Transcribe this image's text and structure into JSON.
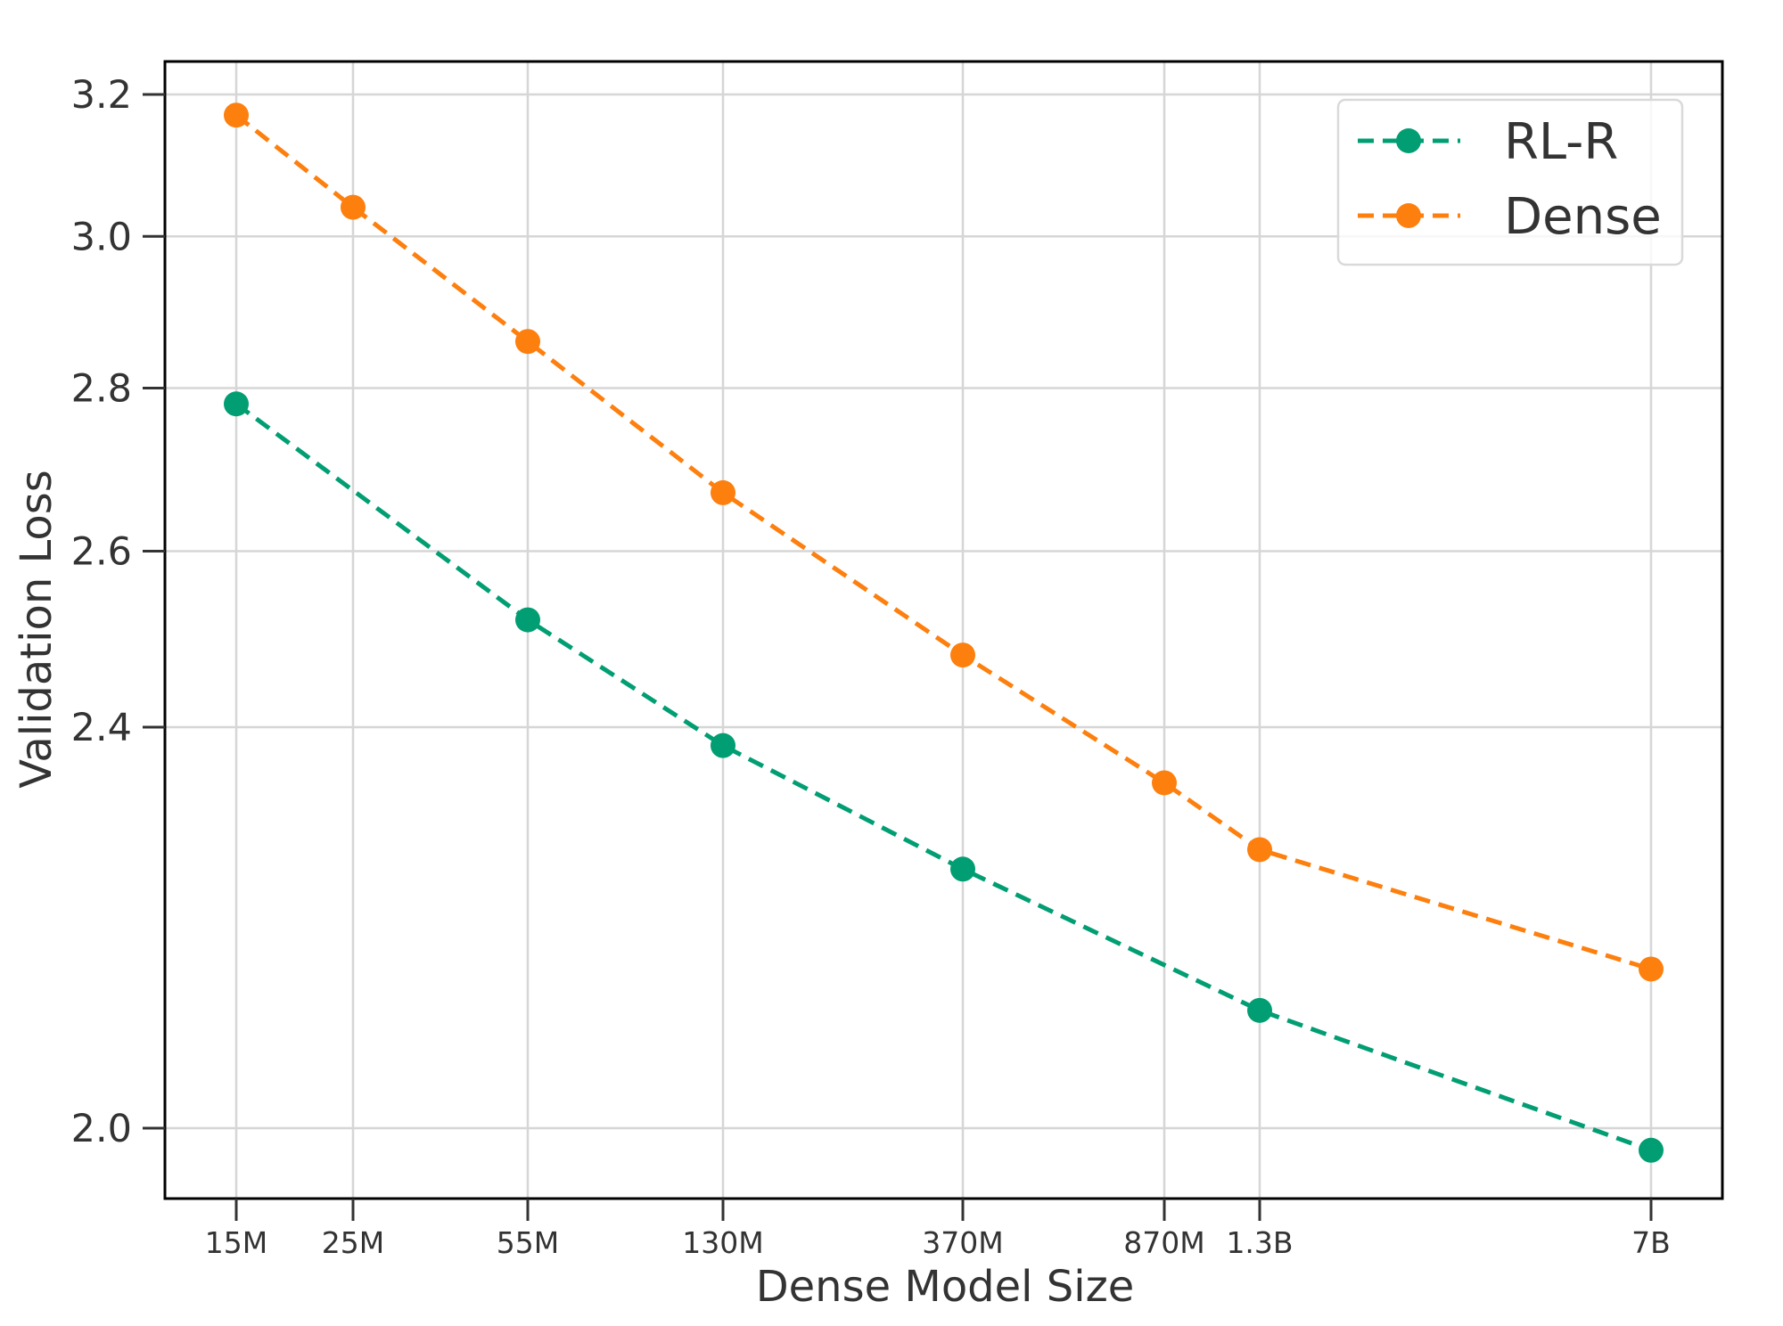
{
  "chart_data": {
    "type": "line",
    "title": "",
    "xlabel": "Dense Model Size",
    "ylabel": "Validation Loss",
    "x_scale": "categorical-log",
    "y_scale": "log",
    "ylim": [
      1.94,
      3.25
    ],
    "grid": true,
    "legend_position": "upper right",
    "x_ticks": [
      {
        "label": "15M",
        "pos": 265
      },
      {
        "label": "25M",
        "pos": 396
      },
      {
        "label": "55M",
        "pos": 592
      },
      {
        "label": "130M",
        "pos": 811
      },
      {
        "label": "370M",
        "pos": 1080
      },
      {
        "label": "870M",
        "pos": 1306
      },
      {
        "label": "1.3B",
        "pos": 1413
      },
      {
        "label": "7B",
        "pos": 1852
      }
    ],
    "y_ticks": [
      {
        "label": "2.0",
        "value": 2.0
      },
      {
        "label": "2.4",
        "value": 2.4
      },
      {
        "label": "2.6",
        "value": 2.6
      },
      {
        "label": "2.8",
        "value": 2.8
      },
      {
        "label": "3.0",
        "value": 3.0
      },
      {
        "label": "3.2",
        "value": 3.2
      }
    ],
    "series": [
      {
        "name": "RL-R",
        "color": "#029e73",
        "linestyle": "dashed",
        "marker": "circle",
        "x": [
          "15M",
          "55M",
          "130M",
          "370M",
          "1.3B",
          "7B"
        ],
        "values": [
          2.78,
          2.52,
          2.38,
          2.25,
          2.11,
          1.98
        ]
      },
      {
        "name": "Dense",
        "color": "#fd7f0e",
        "linestyle": "dashed",
        "marker": "circle",
        "x": [
          "15M",
          "25M",
          "55M",
          "130M",
          "370M",
          "870M",
          "1.3B",
          "7B"
        ],
        "values": [
          3.17,
          3.04,
          2.86,
          2.67,
          2.48,
          2.34,
          2.27,
          2.15
        ]
      }
    ]
  },
  "legend": {
    "items": [
      {
        "label": "RL-R",
        "color": "#029e73"
      },
      {
        "label": "Dense",
        "color": "#fd7f0e"
      }
    ]
  },
  "colors": {
    "axis": "#000000",
    "grid": "#d6d6d6",
    "text": "#333333",
    "legend_border": "#d9d9d9"
  }
}
